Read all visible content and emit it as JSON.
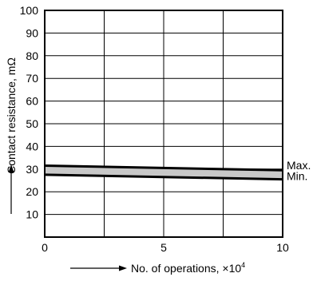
{
  "chart_data": {
    "type": "area",
    "title": "",
    "xlabel": "No. of operations, ×10",
    "xlabel_exponent": "4",
    "ylabel": "Contact resistance, mΩ",
    "xlim": [
      0,
      10
    ],
    "ylim": [
      0,
      100
    ],
    "x_ticks": [
      0,
      5,
      10
    ],
    "y_ticks": [
      10,
      20,
      30,
      40,
      50,
      60,
      70,
      80,
      90,
      100
    ],
    "grid": true,
    "series": [
      {
        "name": "Max.",
        "x": [
          0,
          10
        ],
        "values": [
          31.5,
          29.5
        ]
      },
      {
        "name": "Min.",
        "x": [
          0,
          10
        ],
        "values": [
          27.5,
          25.5
        ]
      }
    ],
    "band_fill": "#c8c8c8",
    "line_color": "#000000"
  }
}
